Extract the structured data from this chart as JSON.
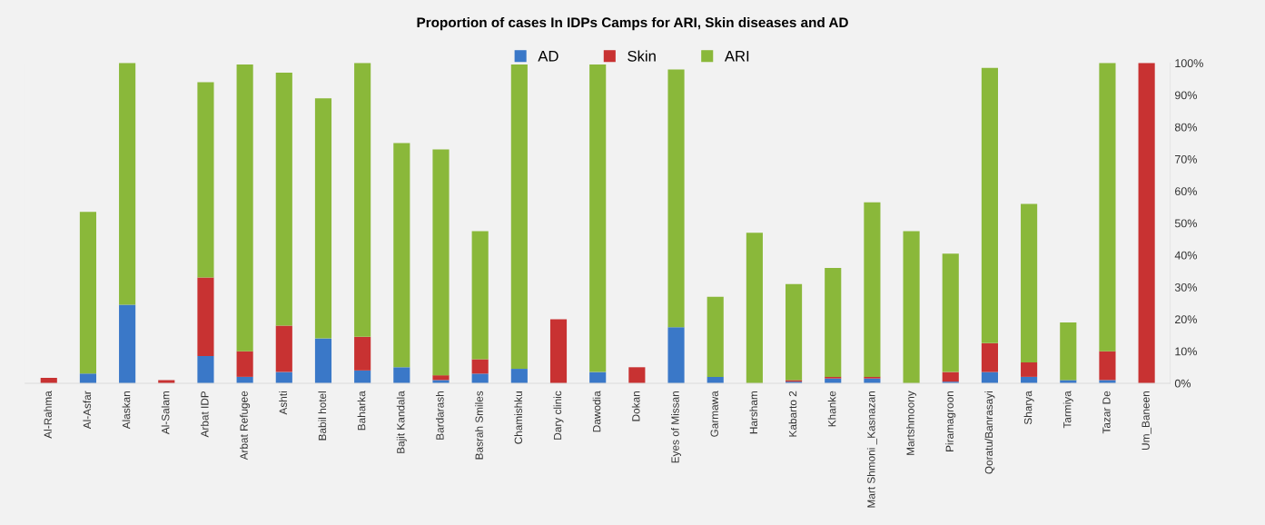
{
  "chart_data": {
    "type": "bar",
    "title": "Proportion of cases In IDPs Camps for ARI, Skin diseases and AD",
    "stacked": true,
    "categories": [
      "Al-Rahma",
      "Al-Asfar",
      "Alaskan",
      "Al-Salam",
      "Arbat IDP",
      "Arbat Refugee",
      "Ashti",
      "Babil hotel",
      "Baharka",
      "Bajit Kandala",
      "Bardarash",
      "Basrah Smiles",
      "Chamishku",
      "Dary clinic",
      "Dawodia",
      "Dokan",
      "Eyes of Missan",
      "Garmawa",
      "Harsham",
      "Kabarto 2",
      "Khanke",
      "Mart Shmoni _Kasnazan",
      "Martshmoony",
      "Piramagroon",
      "Qoratu/Banrasayi",
      "Sharya",
      "Tarmiya",
      "Tazar De",
      "Um_Baneen"
    ],
    "series": [
      {
        "name": "AD",
        "color": "#3a78c8",
        "values": [
          0,
          3,
          24.5,
          0,
          8.5,
          2,
          3.5,
          14,
          4,
          5,
          1,
          3,
          4.5,
          0,
          3.5,
          0,
          17.5,
          2,
          0,
          0.5,
          1.5,
          1.5,
          0,
          0.5,
          3.5,
          2,
          1,
          1,
          0
        ]
      },
      {
        "name": "Skin",
        "color": "#c83232",
        "values": [
          1.7,
          0,
          0,
          1,
          24.5,
          8,
          14.5,
          0,
          10.5,
          0,
          1.5,
          4.5,
          0,
          20,
          0,
          5,
          0,
          0,
          0,
          0.5,
          0.5,
          0.5,
          0,
          3,
          9,
          4.5,
          0,
          9,
          100
        ]
      },
      {
        "name": "ARI",
        "color": "#8ab83a",
        "values": [
          0,
          50.5,
          75.5,
          0,
          61,
          89.5,
          79,
          75,
          85.5,
          70,
          70.5,
          40,
          95,
          0,
          96,
          0,
          80.5,
          25,
          47,
          30,
          34,
          54.5,
          47.5,
          37,
          86,
          49.5,
          18,
          90,
          0
        ]
      }
    ],
    "ylim": [
      0,
      100
    ],
    "yticks": [
      {
        "value": 0,
        "label": "0%"
      },
      {
        "value": 10,
        "label": "10%"
      },
      {
        "value": 20,
        "label": "20%"
      },
      {
        "value": 30,
        "label": "30%"
      },
      {
        "value": 40,
        "label": "40%"
      },
      {
        "value": 50,
        "label": "50%"
      },
      {
        "value": 60,
        "label": "60%"
      },
      {
        "value": 70,
        "label": "70%"
      },
      {
        "value": 80,
        "label": "80%"
      },
      {
        "value": 90,
        "label": "90%"
      },
      {
        "value": 100,
        "label": "100%"
      }
    ],
    "grid": false,
    "legend": "top"
  }
}
